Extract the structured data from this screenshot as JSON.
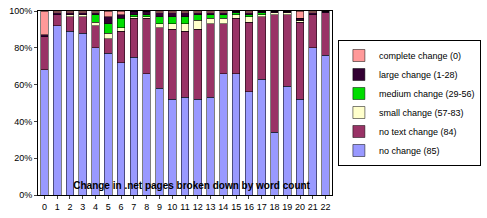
{
  "chart_data": {
    "type": "bar",
    "title": "Change in .net pages broken down by word count",
    "stacked": true,
    "grid": false,
    "legend": "right",
    "categories": [
      0,
      1,
      2,
      3,
      4,
      5,
      6,
      7,
      8,
      9,
      10,
      11,
      12,
      13,
      14,
      15,
      16,
      17,
      18,
      19,
      20,
      21,
      22
    ],
    "ylim": [
      0,
      100
    ],
    "yticks": [
      {
        "value": 0,
        "label": "0%"
      },
      {
        "value": 20,
        "label": "20%"
      },
      {
        "value": 40,
        "label": "40%"
      },
      {
        "value": 60,
        "label": "60%"
      },
      {
        "value": 80,
        "label": "80%"
      },
      {
        "value": 100,
        "label": "100%"
      }
    ],
    "series": [
      {
        "name": "no change (85)",
        "color": "#9999ff",
        "values": [
          68,
          92,
          89,
          88,
          80,
          77,
          72,
          75,
          66,
          58,
          52,
          53,
          52,
          53,
          66,
          66,
          56,
          63,
          34,
          59,
          52,
          80,
          76
        ]
      },
      {
        "name": "no text change (84)",
        "color": "#993366",
        "values": [
          18,
          6,
          8,
          9,
          12,
          8,
          17,
          21,
          30,
          33,
          38,
          36,
          38,
          40,
          27,
          30,
          38,
          34,
          64,
          39,
          42,
          18,
          23
        ]
      },
      {
        "name": "small change (57-83)",
        "color": "#ffffcc",
        "values": [
          0,
          0,
          1,
          1,
          2,
          3,
          2,
          1,
          1,
          2,
          3,
          4,
          5,
          3,
          3,
          2,
          3,
          1,
          1,
          1,
          1,
          0,
          0
        ]
      },
      {
        "name": "medium change (29-56)",
        "color": "#00dd00",
        "values": [
          0,
          0,
          0,
          0,
          4,
          5,
          5,
          1,
          1,
          4,
          4,
          4,
          3,
          2,
          2,
          1,
          1,
          1,
          0,
          0,
          0,
          0,
          0
        ]
      },
      {
        "name": "large change (1-28)",
        "color": "#330033",
        "values": [
          1,
          1,
          1,
          1,
          1,
          4,
          2,
          2,
          2,
          2,
          2,
          2,
          1,
          1,
          1,
          1,
          1,
          1,
          1,
          1,
          1,
          1,
          1
        ]
      },
      {
        "name": "complete change (0)",
        "color": "#ff9999",
        "values": [
          13,
          1,
          1,
          1,
          1,
          3,
          2,
          0,
          0,
          1,
          1,
          1,
          1,
          1,
          1,
          0,
          1,
          0,
          0,
          0,
          4,
          1,
          0
        ]
      }
    ]
  }
}
